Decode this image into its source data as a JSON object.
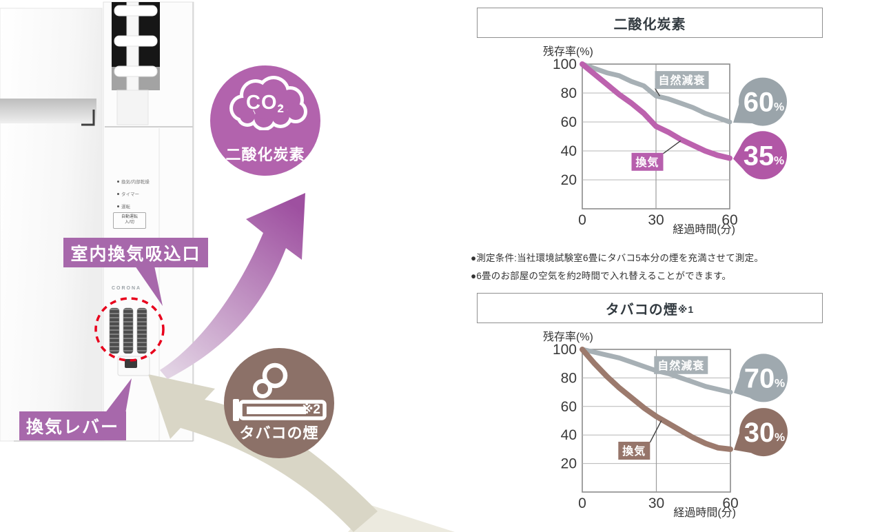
{
  "device": {
    "brand": "CORONA",
    "indicators": [
      {
        "label": "換気/内部乾燥"
      },
      {
        "label": "タイマー"
      },
      {
        "label": "運転"
      }
    ],
    "auto_button_line1": "自動運転",
    "auto_button_line2": "入/切",
    "callout_intake": "室内換気吸込口",
    "callout_lever": "換気レバー",
    "callout_color": "#a768ab"
  },
  "bubbles": {
    "co2": {
      "symbol_main": "CO",
      "symbol_sub": "2",
      "label": "二酸化炭素",
      "color": "#b263ad"
    },
    "smoke": {
      "ref_mark": "※2",
      "label": "タバコの煙",
      "color": "#8c7168"
    }
  },
  "notes": [
    "●測定条件:当社環境試験室6畳にタバコ5本分の煙を充満させて測定。",
    "●6畳のお部屋の空気を約2時間で入れ替えることができます。"
  ],
  "chart_data": [
    {
      "type": "line",
      "title": "二酸化炭素",
      "title_suffix": "",
      "ylabel": "残存率(%)",
      "xlabel": "経過時間(分)",
      "xlim": [
        0,
        60
      ],
      "ylim": [
        0,
        100
      ],
      "x_ticks": [
        0,
        30,
        60
      ],
      "y_ticks": [
        100,
        80,
        60,
        40,
        20
      ],
      "grid": true,
      "series": [
        {
          "name": "自然減衰",
          "color": "#a7b0b5",
          "label_bg": "#a7b0b5",
          "width": 7,
          "x": [
            0,
            5,
            10,
            15,
            20,
            25,
            30,
            35,
            40,
            45,
            50,
            55,
            60
          ],
          "values": [
            100,
            97,
            94,
            92,
            88,
            85,
            78,
            76,
            73,
            70,
            66,
            63,
            60
          ],
          "badge": {
            "value": "60",
            "unit": "%",
            "color": "#9aa4aa"
          },
          "badge_y": 74,
          "label_pos": {
            "x": 40.5,
            "y": 89
          },
          "leader_to": {
            "x": 31.5,
            "y": 78
          }
        },
        {
          "name": "換気",
          "color": "#bc62ae",
          "label_bg": "#b75fad",
          "width": 8,
          "x": [
            0,
            5,
            10,
            15,
            20,
            25,
            30,
            35,
            40,
            45,
            50,
            55,
            60
          ],
          "values": [
            100,
            93,
            86,
            79,
            73,
            66,
            57,
            53,
            48,
            44,
            40,
            37,
            35
          ],
          "badge": {
            "value": "35",
            "unit": "%",
            "color": "#b157a6"
          },
          "badge_y": 37,
          "label_pos": {
            "x": 26.5,
            "y": 32.5
          },
          "leader_to": {
            "x": 40,
            "y": 47
          }
        }
      ]
    },
    {
      "type": "line",
      "title": "タバコの煙",
      "title_suffix": "※1",
      "ylabel": "残存率(%)",
      "xlabel": "経過時間(分)",
      "xlim": [
        0,
        60
      ],
      "ylim": [
        0,
        100
      ],
      "x_ticks": [
        0,
        30,
        60
      ],
      "y_ticks": [
        100,
        80,
        60,
        40,
        20
      ],
      "grid": true,
      "series": [
        {
          "name": "自然減衰",
          "color": "#a7b0b5",
          "label_bg": "#a7b0b5",
          "width": 7,
          "x": [
            0,
            5,
            10,
            15,
            20,
            25,
            30,
            35,
            40,
            45,
            50,
            55,
            60
          ],
          "values": [
            100,
            98,
            96,
            94,
            91,
            88,
            85,
            83,
            80,
            77,
            74,
            72,
            70
          ],
          "badge": {
            "value": "70",
            "unit": "%",
            "color": "#9fa9af"
          },
          "badge_y": 80,
          "label_pos": {
            "x": 40,
            "y": 89
          },
          "leader_to": {
            "x": 32,
            "y": 84
          }
        },
        {
          "name": "換気",
          "color": "#9c7a6d",
          "label_bg": "#96756a",
          "width": 8,
          "x": [
            0,
            5,
            10,
            15,
            20,
            25,
            30,
            35,
            40,
            45,
            50,
            55,
            60
          ],
          "values": [
            100,
            90,
            81,
            73,
            66,
            59,
            53,
            48,
            43,
            38,
            34,
            31,
            30
          ],
          "badge": {
            "value": "30",
            "unit": "%",
            "color": "#8f7065"
          },
          "badge_y": 42,
          "label_pos": {
            "x": 21,
            "y": 29
          },
          "leader_to": {
            "x": 32,
            "y": 50
          }
        }
      ]
    }
  ]
}
